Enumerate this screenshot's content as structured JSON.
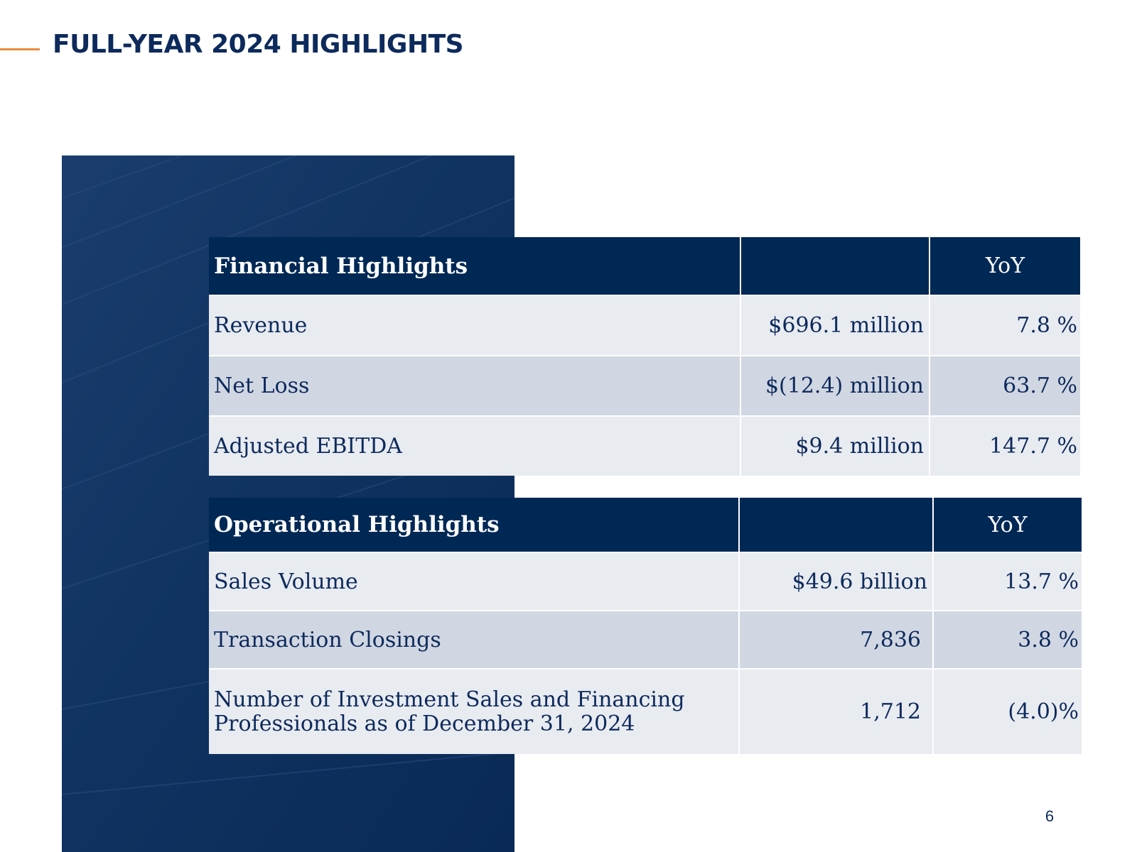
{
  "header": {
    "title": "FULL-YEAR 2024 HIGHLIGHTS"
  },
  "colors": {
    "accent": "#e98b3d",
    "navy": "#002855",
    "panel": "#0f3260",
    "row_light": "#e8ebf0",
    "row_dark": "#d1d7e2",
    "text": "#0d2a5c"
  },
  "financial": {
    "title": "Financial Highlights",
    "yoy_header": "YoY",
    "rows": [
      {
        "label": "Revenue",
        "value": "$696.1 million",
        "yoy": "7.8 %"
      },
      {
        "label": "Net Loss",
        "value": "$(12.4) million",
        "yoy": "63.7 %"
      },
      {
        "label": "Adjusted EBITDA",
        "value": "$9.4 million",
        "yoy": "147.7 %"
      }
    ]
  },
  "operational": {
    "title": "Operational Highlights",
    "yoy_header": "YoY",
    "rows": [
      {
        "label": "Sales Volume",
        "value": "$49.6 billion",
        "yoy": "13.7 %"
      },
      {
        "label": "Transaction Closings",
        "value": "7,836",
        "yoy": "3.8 %"
      },
      {
        "label_line1": "Number of Investment Sales and Financing",
        "label_line2": "Professionals as of December 31, 2024",
        "value": "1,712",
        "yoy": "(4.0)%"
      }
    ]
  },
  "footer": {
    "page_number": "6"
  }
}
